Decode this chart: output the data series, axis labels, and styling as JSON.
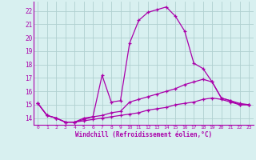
{
  "xlabel": "Windchill (Refroidissement éolien,°C)",
  "background_color": "#d8f0f0",
  "grid_color": "#b0d0d0",
  "line_color": "#aa00aa",
  "xlim": [
    -0.5,
    23.5
  ],
  "ylim": [
    13.5,
    22.7
  ],
  "yticks": [
    14,
    15,
    16,
    17,
    18,
    19,
    20,
    21,
    22
  ],
  "xticks": [
    0,
    1,
    2,
    3,
    4,
    5,
    6,
    7,
    8,
    9,
    10,
    11,
    12,
    13,
    14,
    15,
    16,
    17,
    18,
    19,
    20,
    21,
    22,
    23
  ],
  "series1_x": [
    0,
    1,
    2,
    3,
    4,
    5,
    6,
    7,
    8,
    9,
    10,
    11,
    12,
    13,
    14,
    15,
    16,
    17,
    18,
    19,
    20,
    21,
    22,
    23
  ],
  "series1_y": [
    15.1,
    14.2,
    14.0,
    13.7,
    13.7,
    14.0,
    14.1,
    17.2,
    15.2,
    15.3,
    19.6,
    21.3,
    21.9,
    22.1,
    22.3,
    21.6,
    20.5,
    18.1,
    17.7,
    16.7,
    15.5,
    15.3,
    15.0,
    15.0
  ],
  "series2_x": [
    0,
    1,
    2,
    3,
    4,
    5,
    6,
    7,
    8,
    9,
    10,
    11,
    12,
    13,
    14,
    15,
    16,
    17,
    18,
    19,
    20,
    21,
    22,
    23
  ],
  "series2_y": [
    15.1,
    14.2,
    14.0,
    13.7,
    13.7,
    13.9,
    14.1,
    14.2,
    14.4,
    14.5,
    15.2,
    15.4,
    15.6,
    15.8,
    16.0,
    16.2,
    16.5,
    16.7,
    16.9,
    16.7,
    15.5,
    15.3,
    15.1,
    15.0
  ],
  "series3_x": [
    0,
    1,
    2,
    3,
    4,
    5,
    6,
    7,
    8,
    9,
    10,
    11,
    12,
    13,
    14,
    15,
    16,
    17,
    18,
    19,
    20,
    21,
    22,
    23
  ],
  "series3_y": [
    15.1,
    14.2,
    14.0,
    13.7,
    13.7,
    13.8,
    13.9,
    14.0,
    14.1,
    14.2,
    14.3,
    14.4,
    14.6,
    14.7,
    14.8,
    15.0,
    15.1,
    15.2,
    15.4,
    15.5,
    15.4,
    15.2,
    15.0,
    15.0
  ]
}
